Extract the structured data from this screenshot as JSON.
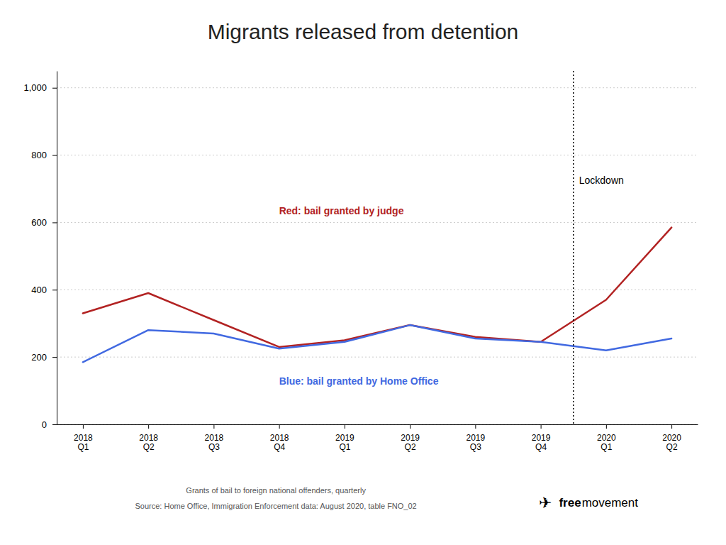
{
  "chart_data": {
    "type": "line",
    "title": "Migrants released from detention",
    "categories": [
      "2018\nQ1",
      "2018\nQ2",
      "2018\nQ3",
      "2018\nQ4",
      "2019\nQ1",
      "2019\nQ2",
      "2019\nQ3",
      "2019\nQ4",
      "2020\nQ1",
      "2020\nQ2"
    ],
    "series": [
      {
        "name": "Red: bail granted by judge",
        "color": "#b22222",
        "values": [
          330,
          390,
          310,
          230,
          250,
          295,
          260,
          245,
          370,
          585
        ]
      },
      {
        "name": "Blue: bail granted by Home Office",
        "color": "#4169E1",
        "values": [
          185,
          280,
          270,
          225,
          245,
          295,
          255,
          245,
          220,
          255
        ]
      }
    ],
    "ylim": [
      0,
      1050
    ],
    "yticks": [
      0,
      200,
      400,
      600,
      800,
      {
        "value": 1000,
        "label": "1,000"
      }
    ],
    "grid": true,
    "annotations": [
      {
        "text": "Lockdown",
        "x": "2020\nQ1"
      }
    ],
    "source": [
      "Grants of bail to foreign national offenders, quarterly",
      "Source: Home Office, Immigration Enforcement data: August 2020, table FNO_02"
    ],
    "logo": [
      "✈",
      "free",
      "movement"
    ]
  }
}
